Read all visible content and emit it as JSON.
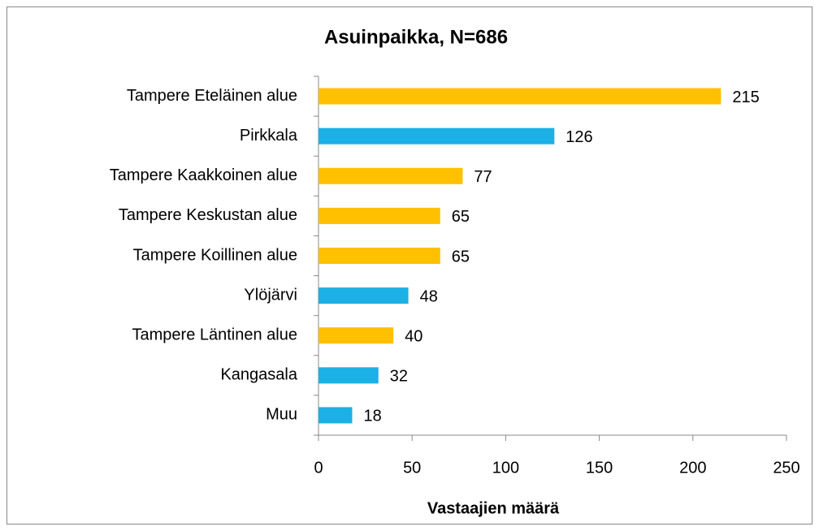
{
  "chart_data": {
    "type": "bar",
    "orientation": "horizontal",
    "title": "Asuinpaikka, N=686",
    "x_label": "Vastaajien määrä",
    "categories": [
      "Tampere Eteläinen alue",
      "Pirkkala",
      "Tampere Kaakkoinen alue",
      "Tampere Keskustan alue",
      "Tampere Koillinen alue",
      "Ylöjärvi",
      "Tampere Läntinen alue",
      "Kangasala",
      "Muu"
    ],
    "values": [
      215,
      126,
      77,
      65,
      65,
      48,
      40,
      32,
      18
    ],
    "colors": [
      "#ffc000",
      "#1bb0e6",
      "#ffc000",
      "#ffc000",
      "#ffc000",
      "#1bb0e6",
      "#ffc000",
      "#1bb0e6",
      "#1bb0e6"
    ],
    "xlim": [
      0,
      250
    ],
    "xticks": [
      0,
      50,
      100,
      150,
      200,
      250
    ],
    "grid": false
  }
}
